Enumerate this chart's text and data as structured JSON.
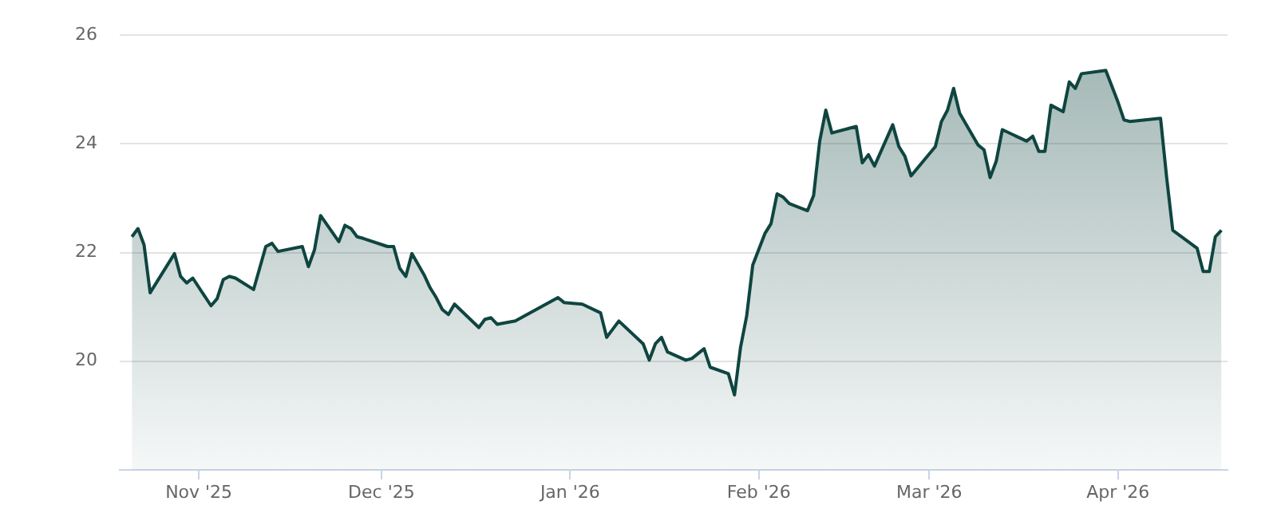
{
  "chart_data": {
    "type": "area",
    "x": [
      "2025-10-21",
      "2025-10-22",
      "2025-10-23",
      "2025-10-24",
      "2025-10-27",
      "2025-10-28",
      "2025-10-29",
      "2025-10-30",
      "2025-10-31",
      "2025-11-03",
      "2025-11-04",
      "2025-11-05",
      "2025-11-06",
      "2025-11-07",
      "2025-11-10",
      "2025-11-12",
      "2025-11-13",
      "2025-11-14",
      "2025-11-18",
      "2025-11-19",
      "2025-11-20",
      "2025-11-21",
      "2025-11-24",
      "2025-11-25",
      "2025-11-26",
      "2025-11-27",
      "2025-11-28",
      "2025-12-02",
      "2025-12-03",
      "2025-12-04",
      "2025-12-05",
      "2025-12-06",
      "2025-12-08",
      "2025-12-09",
      "2025-12-10",
      "2025-12-11",
      "2025-12-12",
      "2025-12-13",
      "2025-12-17",
      "2025-12-18",
      "2025-12-19",
      "2025-12-20",
      "2025-12-23",
      "2025-12-30",
      "2025-12-31",
      "2026-01-03",
      "2026-01-06",
      "2026-01-07",
      "2026-01-09",
      "2026-01-13",
      "2026-01-14",
      "2026-01-15",
      "2026-01-16",
      "2026-01-17",
      "2026-01-20",
      "2026-01-21",
      "2026-01-23",
      "2026-01-24",
      "2026-01-27",
      "2026-01-28",
      "2026-01-29",
      "2026-01-30",
      "2026-01-31",
      "2026-02-02",
      "2026-02-03",
      "2026-02-04",
      "2026-02-05",
      "2026-02-06",
      "2026-02-09",
      "2026-02-10",
      "2026-02-11",
      "2026-02-12",
      "2026-02-13",
      "2026-02-16",
      "2026-02-17",
      "2026-02-18",
      "2026-02-19",
      "2026-02-20",
      "2026-02-23",
      "2026-02-24",
      "2026-02-25",
      "2026-02-26",
      "2026-03-02",
      "2026-03-03",
      "2026-03-04",
      "2026-03-05",
      "2026-03-06",
      "2026-03-09",
      "2026-03-10",
      "2026-03-11",
      "2026-03-12",
      "2026-03-13",
      "2026-03-17",
      "2026-03-18",
      "2026-03-19",
      "2026-03-20",
      "2026-03-21",
      "2026-03-23",
      "2026-03-24",
      "2026-03-25",
      "2026-03-26",
      "2026-03-30",
      "2026-04-01",
      "2026-04-02",
      "2026-04-03",
      "2026-04-08",
      "2026-04-09",
      "2026-04-10",
      "2026-04-14",
      "2026-04-15",
      "2026-04-16",
      "2026-04-17",
      "2026-04-18"
    ],
    "series": [
      {
        "color": "#0f4540",
        "values": [
          22.29,
          22.44,
          22.14,
          21.26,
          21.8,
          21.98,
          21.56,
          21.44,
          21.53,
          21.02,
          21.15,
          21.5,
          21.56,
          21.53,
          21.32,
          22.11,
          22.17,
          22.02,
          22.11,
          21.74,
          22.05,
          22.68,
          22.2,
          22.5,
          22.44,
          22.29,
          22.26,
          22.11,
          22.11,
          21.71,
          21.56,
          21.98,
          21.59,
          21.35,
          21.17,
          20.95,
          20.86,
          21.05,
          20.62,
          20.77,
          20.8,
          20.68,
          20.74,
          21.17,
          21.08,
          21.05,
          20.89,
          20.44,
          20.74,
          20.32,
          20.02,
          20.32,
          20.44,
          20.17,
          20.02,
          20.05,
          20.23,
          19.89,
          19.77,
          19.38,
          20.26,
          20.83,
          21.77,
          22.35,
          22.53,
          23.08,
          23.02,
          22.9,
          22.77,
          23.05,
          24.05,
          24.62,
          24.2,
          24.29,
          24.32,
          23.65,
          23.8,
          23.59,
          24.35,
          23.95,
          23.77,
          23.41,
          23.95,
          24.41,
          24.62,
          25.02,
          24.56,
          23.98,
          23.89,
          23.38,
          23.68,
          24.26,
          24.05,
          24.14,
          23.86,
          23.86,
          24.71,
          24.59,
          25.14,
          25.02,
          25.29,
          25.35,
          24.77,
          24.44,
          24.41,
          24.47,
          23.38,
          22.41,
          22.08,
          21.65,
          21.65,
          22.29,
          22.41
        ]
      }
    ],
    "xlim": [
      "2025-10-19",
      "2026-04-19"
    ],
    "xticks": [
      {
        "value": "2025-11-01",
        "label": "Nov '25"
      },
      {
        "value": "2025-12-01",
        "label": "Dec '25"
      },
      {
        "value": "2026-01-01",
        "label": "Jan '26"
      },
      {
        "value": "2026-02-01",
        "label": "Feb '26"
      },
      {
        "value": "2026-03-01",
        "label": "Mar '26"
      },
      {
        "value": "2026-04-01",
        "label": "Apr '26"
      }
    ],
    "ylim": [
      18,
      26
    ],
    "yticks": [
      20,
      22,
      24,
      26
    ],
    "grid": "y"
  }
}
